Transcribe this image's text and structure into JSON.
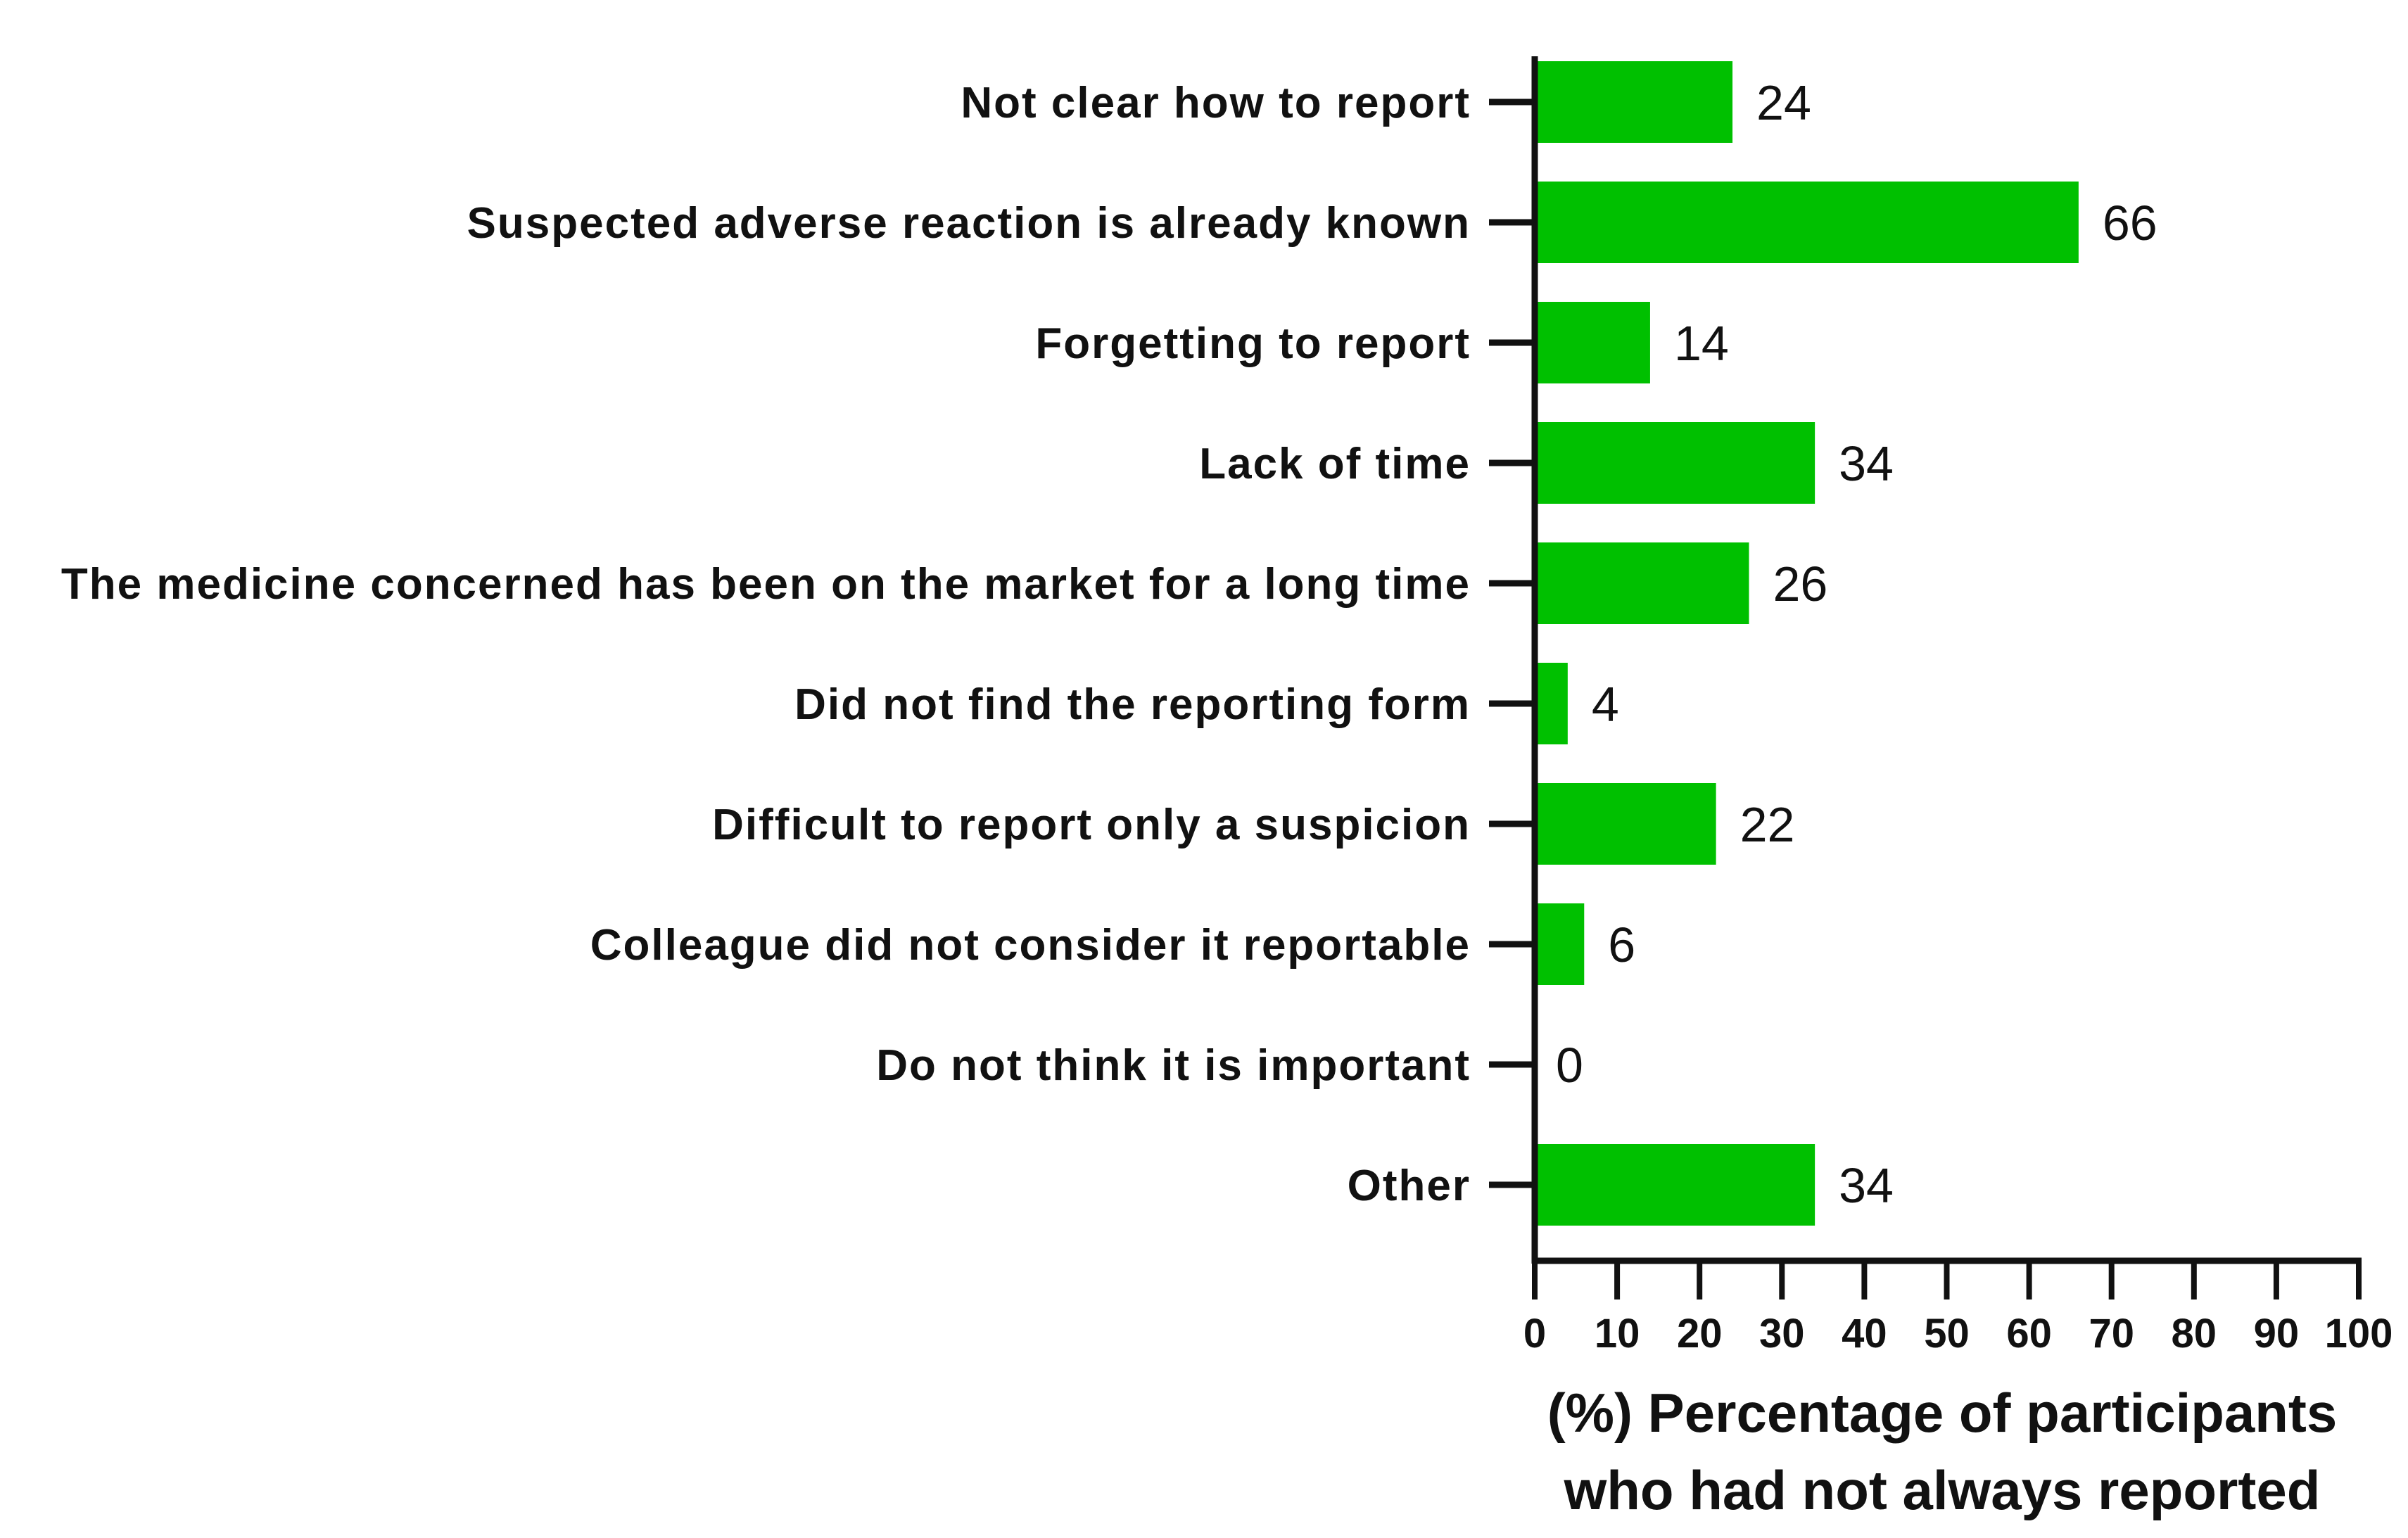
{
  "chart_data": {
    "type": "bar",
    "orientation": "horizontal",
    "categories": [
      "Not clear how to report",
      "Suspected adverse reaction is already known",
      "Forgetting to report",
      "Lack of time",
      "The medicine concerned has been on the market for a long time",
      "Did not find the reporting form",
      "Difficult to report only a suspicion",
      "Colleague did not consider it reportable",
      "Do not think it is important",
      "Other"
    ],
    "values": [
      24,
      66,
      14,
      34,
      26,
      4,
      22,
      6,
      0,
      34
    ],
    "data_labels": [
      "24",
      "66",
      "14",
      "34",
      "26",
      "4",
      "22",
      "6",
      "0",
      "34"
    ],
    "xlim": [
      0,
      100
    ],
    "xticks": [
      0,
      10,
      20,
      30,
      40,
      50,
      60,
      70,
      80,
      90,
      100
    ],
    "xtick_labels": [
      "0",
      "10",
      "20",
      "30",
      "40",
      "50",
      "60",
      "70",
      "80",
      "90",
      "100"
    ],
    "xlabel_lines": [
      "(%) Percentage of participants",
      "who had not always reported"
    ],
    "ylabel": "",
    "grid": false,
    "legend": "none",
    "bar_color": "#00c000",
    "axis_color": "#111111"
  }
}
